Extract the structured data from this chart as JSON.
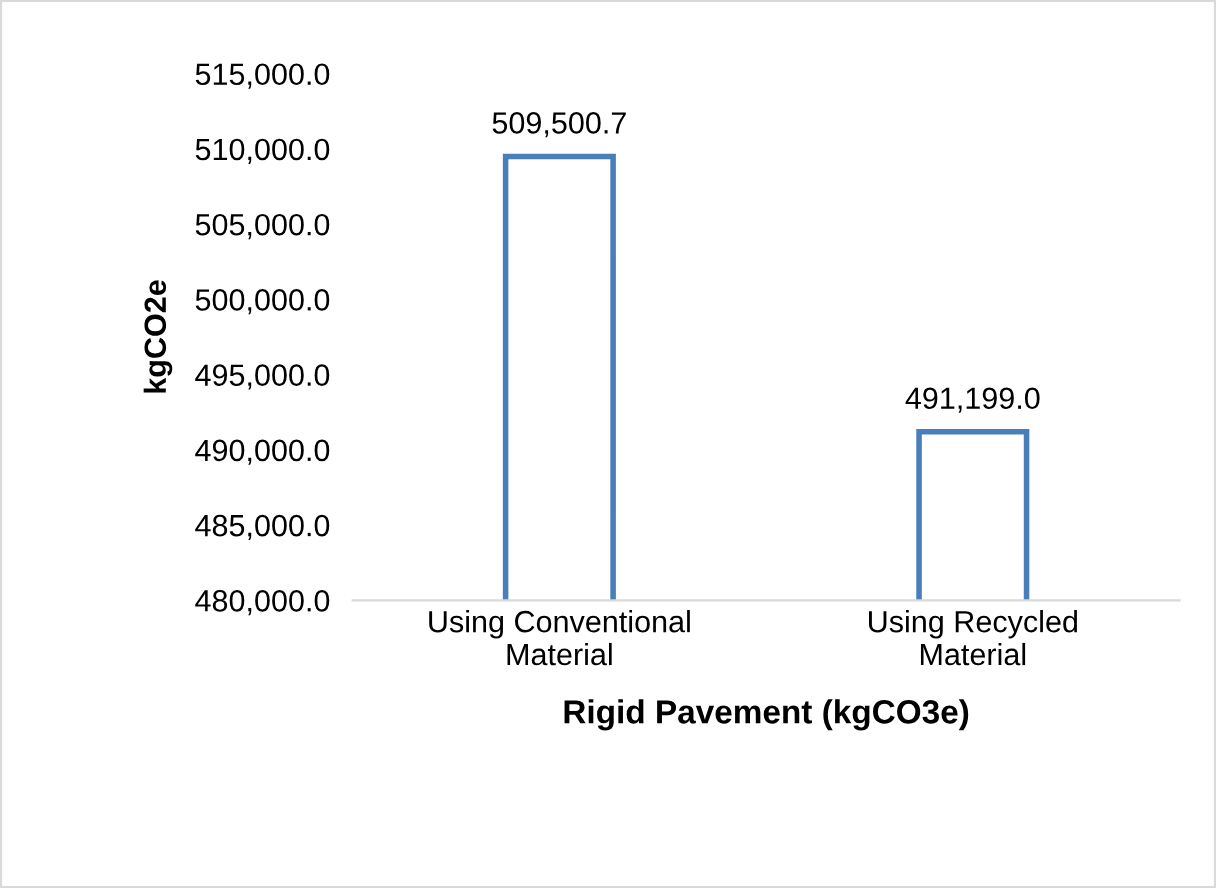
{
  "chart_data": {
    "type": "bar",
    "xlabel": "Rigid Pavement (kgCO3e)",
    "ylabel": "kgCO2e",
    "categories": [
      "Using Conventional Material",
      "Using Recycled Material"
    ],
    "values": [
      509500.7,
      491199.0
    ],
    "value_labels": [
      "509,500.7",
      "491,199.0"
    ],
    "color": "#4a7ebb",
    "ylim": [
      480000,
      515000
    ],
    "yticks": [
      {
        "value": 480000,
        "label": "480,000.0"
      },
      {
        "value": 485000,
        "label": "485,000.0"
      },
      {
        "value": 490000,
        "label": "490,000.0"
      },
      {
        "value": 495000,
        "label": "495,000.0"
      },
      {
        "value": 500000,
        "label": "500,000.0"
      },
      {
        "value": 505000,
        "label": "505,000.0"
      },
      {
        "value": 510000,
        "label": "510,000.0"
      },
      {
        "value": 515000,
        "label": "515,000.0"
      }
    ],
    "grid": false,
    "legend": false
  }
}
